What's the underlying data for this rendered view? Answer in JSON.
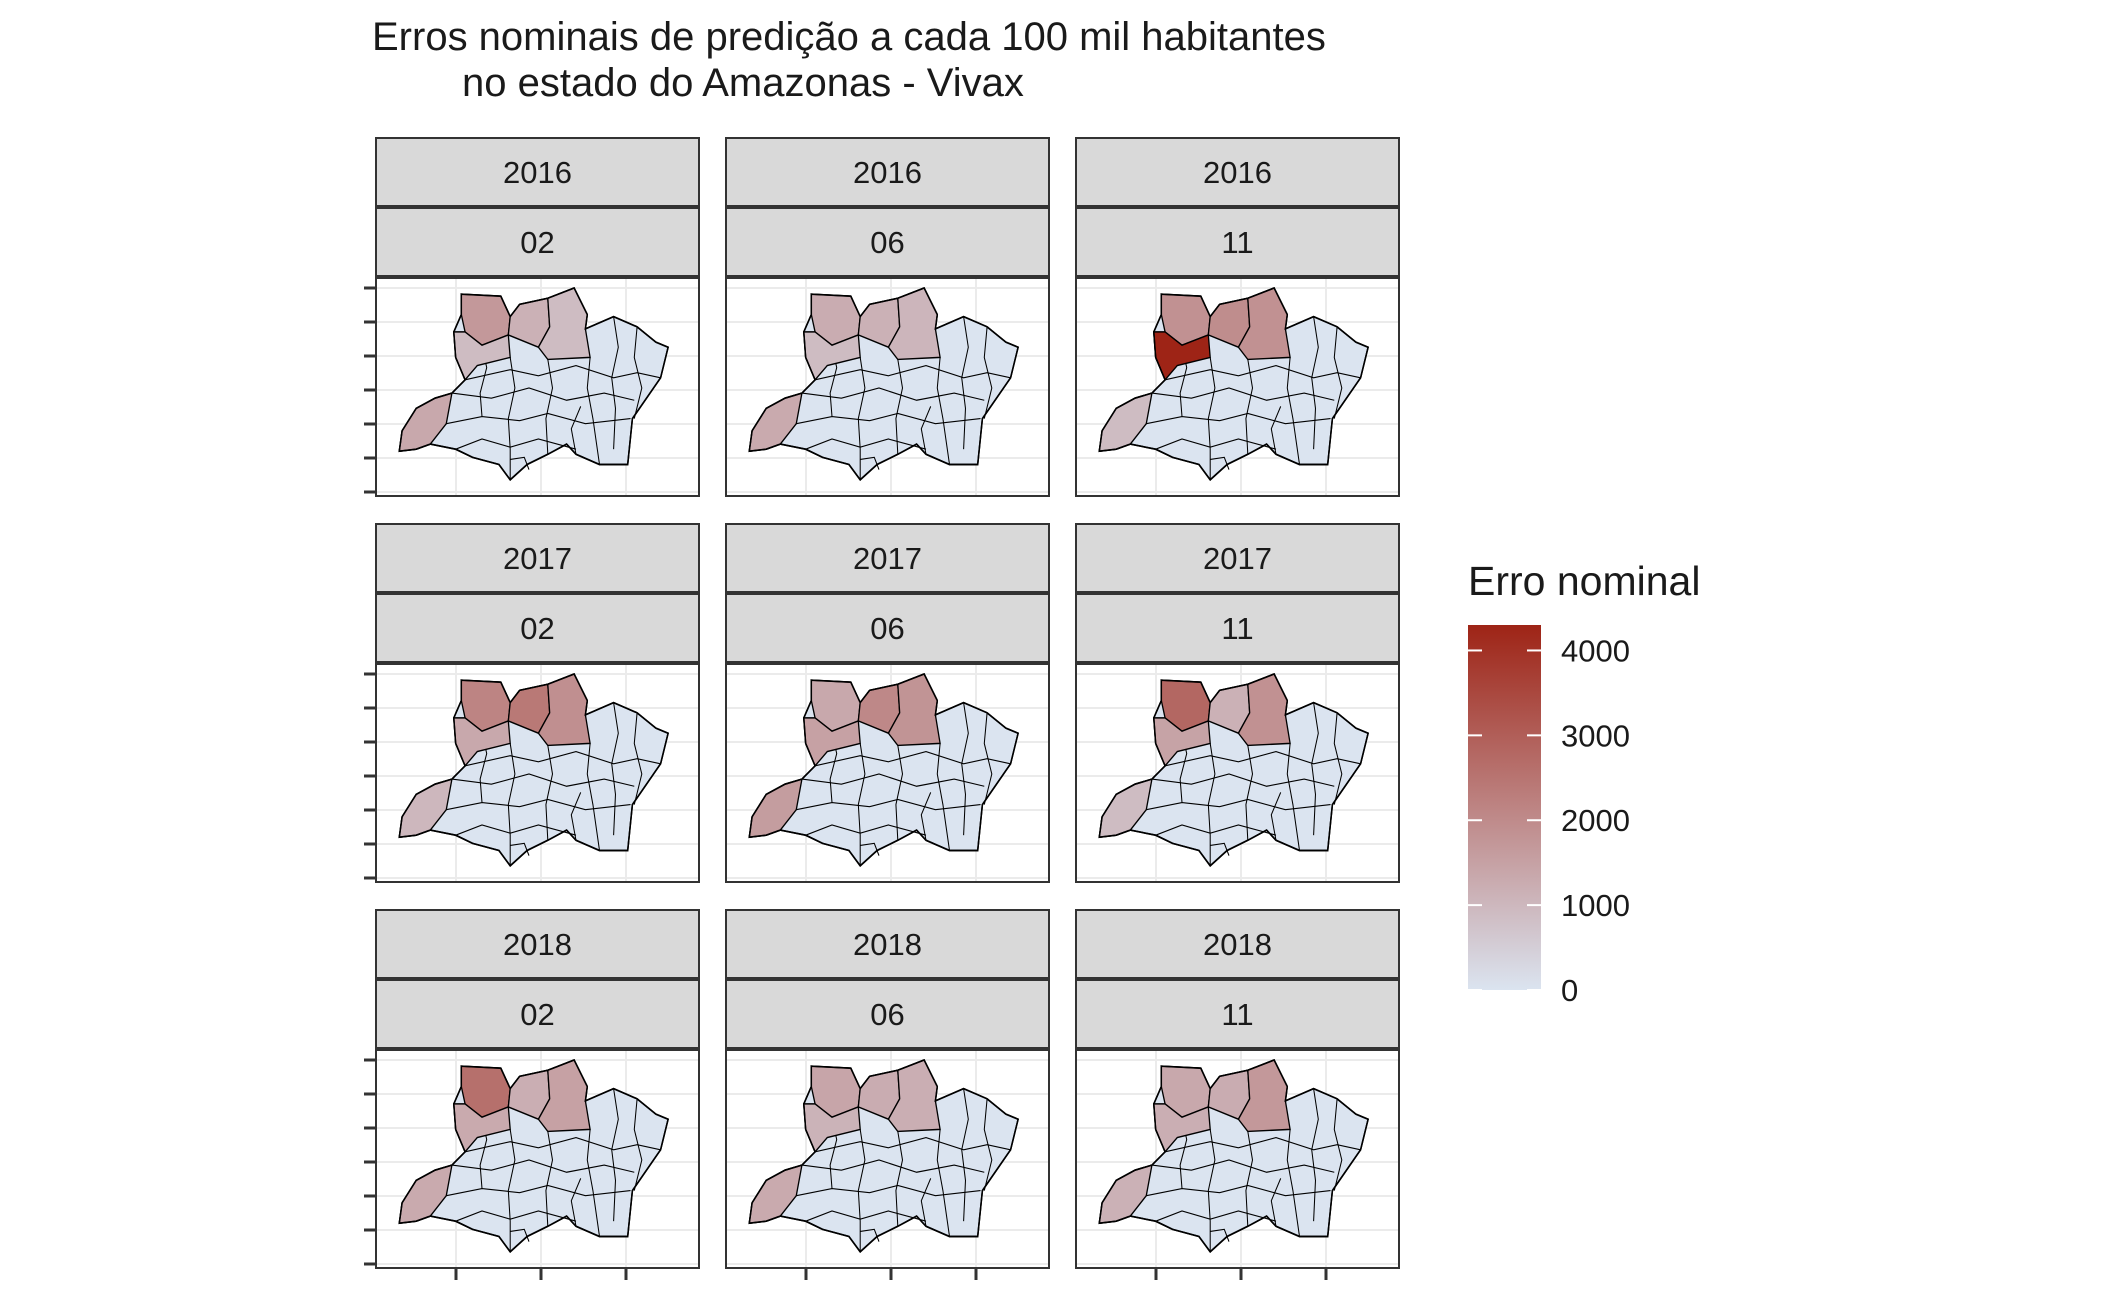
{
  "title_line1": "Erros nominais de predição a cada 100 mil habitantes",
  "title_line2": "no estado do Amazonas - Vivax",
  "legend": {
    "title": "Erro nominal",
    "ticks": [
      "4000",
      "3000",
      "2000",
      "1000",
      "0"
    ],
    "range": [
      0,
      4300
    ],
    "color_low": "#dbe4f0",
    "color_high": "#9e2416"
  },
  "colors": {
    "strip_fill": "#d9d9d9",
    "panel_border": "#333333",
    "grid": "#ebebeb",
    "region_border": "#000000"
  },
  "panels": [
    {
      "year": "2016",
      "month": "02",
      "values": [
        1700,
        1150,
        900,
        900,
        1350
      ]
    },
    {
      "year": "2016",
      "month": "06",
      "values": [
        1250,
        1150,
        1050,
        900,
        1300
      ]
    },
    {
      "year": "2016",
      "month": "11",
      "values": [
        1850,
        1950,
        1850,
        4300,
        900
      ]
    },
    {
      "year": "2017",
      "month": "02",
      "values": [
        2150,
        2400,
        1900,
        1350,
        1000
      ]
    },
    {
      "year": "2017",
      "month": "06",
      "values": [
        1350,
        2050,
        1800,
        1500,
        1600
      ]
    },
    {
      "year": "2017",
      "month": "11",
      "values": [
        2800,
        1150,
        1850,
        1450,
        900
      ]
    },
    {
      "year": "2018",
      "month": "02",
      "values": [
        2600,
        1200,
        1500,
        1300,
        1300
      ]
    },
    {
      "year": "2018",
      "month": "06",
      "values": [
        1400,
        1250,
        1200,
        1100,
        1300
      ]
    },
    {
      "year": "2018",
      "month": "11",
      "values": [
        1350,
        1250,
        1700,
        1200,
        1150
      ]
    }
  ]
}
